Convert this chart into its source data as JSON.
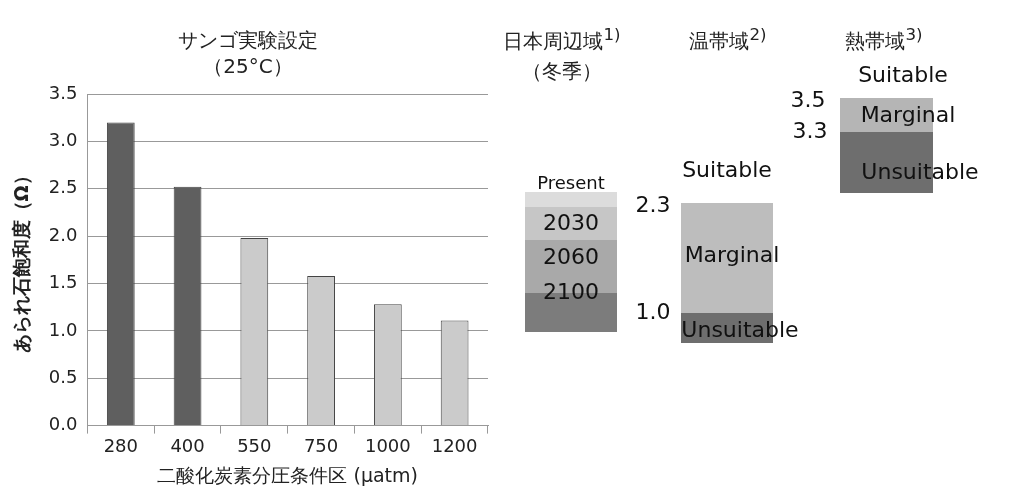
{
  "chart_data": [
    {
      "type": "bar",
      "title": "サンゴ実験設定",
      "subtitle": "（25°C）",
      "xlabel": "二酸化炭素分圧条件区 (µatm)",
      "ylabel": "あられ石飽和度（Ω）",
      "categories": [
        "280",
        "400",
        "550",
        "750",
        "1000",
        "1200"
      ],
      "values": [
        3.2,
        2.52,
        1.98,
        1.58,
        1.28,
        1.11
      ],
      "colors": [
        "#5f5f5f",
        "#5f5f5f",
        "#cbcbcb",
        "#cbcbcb",
        "#cbcbcb",
        "#cbcbcb"
      ],
      "ylim": [
        0,
        3.5
      ],
      "yticks": [
        {
          "value": 0,
          "label": "0.0"
        },
        {
          "value": 0.5,
          "label": "0.5"
        },
        {
          "value": 1,
          "label": "1.0"
        },
        {
          "value": 1.5,
          "label": "1.5"
        },
        {
          "value": 2,
          "label": "2.0"
        },
        {
          "value": 2.5,
          "label": "2.5"
        },
        {
          "value": 3,
          "label": "3.0"
        },
        {
          "value": 3.5,
          "label": "3.5"
        }
      ],
      "grid": "y"
    },
    {
      "type": "other",
      "categories": [
        "日本周辺域$^{1)}$\n（冬季）",
        "温帯域$^{2)}$",
        "熱帯域$^{3)}$"
      ],
      "annotations": [
        "Present",
        "2030",
        "2060",
        "2100",
        "Suitable",
        "Marginal",
        "Unsuitable",
        "2.3",
        "1.0",
        "Suitable",
        "Marginal",
        "Unsuitable",
        "3.5",
        "3.3"
      ]
    }
  ]
}
